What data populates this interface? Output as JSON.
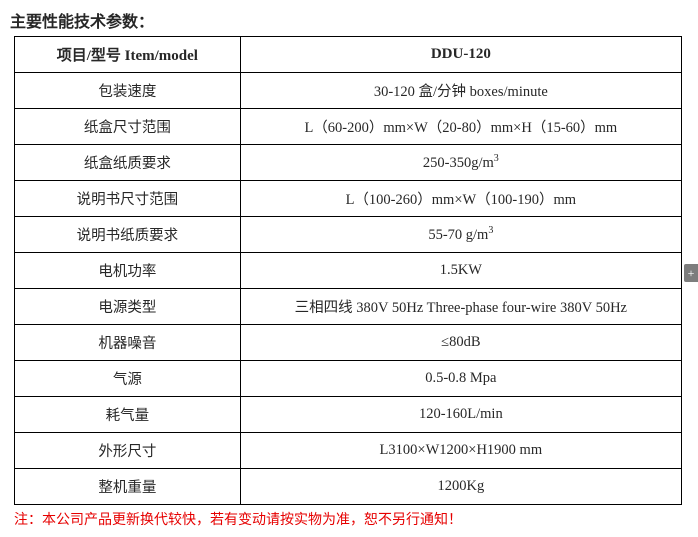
{
  "title": "主要性能技术参数：",
  "table": {
    "header": {
      "item": "项目/型号 Item/model",
      "value": "DDU-120"
    },
    "rows": [
      {
        "item": "包装速度",
        "value": "30-120 盒/分钟 boxes/minute"
      },
      {
        "item": "纸盒尺寸范围",
        "value": "L（60-200）mm×W（20-80）mm×H（15-60）mm"
      },
      {
        "item": "纸盒纸质要求",
        "value": "250-350g/m³"
      },
      {
        "item": "说明书尺寸范围",
        "value": "L（100-260）mm×W（100-190）mm"
      },
      {
        "item": "说明书纸质要求",
        "value": "55-70 g/m³"
      },
      {
        "item": "电机功率",
        "value": "1.5KW"
      },
      {
        "item": "电源类型",
        "value": "三相四线 380V 50Hz Three-phase four-wire 380V 50Hz"
      },
      {
        "item": "机器噪音",
        "value": "≤80dB"
      },
      {
        "item": "气源",
        "value": "0.5-0.8 Mpa"
      },
      {
        "item": "耗气量",
        "value": "120-160L/min"
      },
      {
        "item": "外形尺寸",
        "value": "L3100×W1200×H1900 mm"
      },
      {
        "item": "整机重量",
        "value": "1200Kg"
      }
    ]
  },
  "footnote": "注：本公司产品更新换代较快，若有变动请按实物为准，恕不另行通知！",
  "side_plus": "+"
}
